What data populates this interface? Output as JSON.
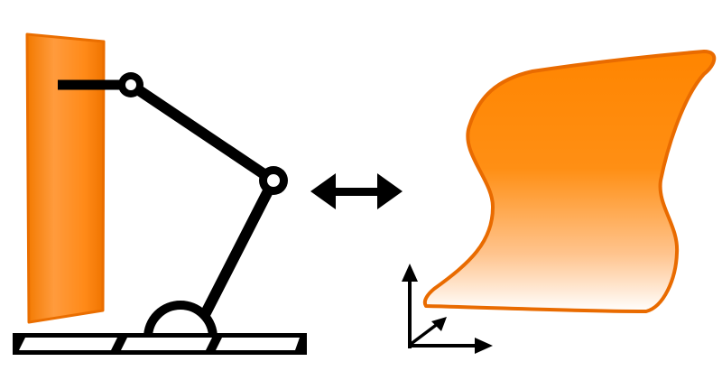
{
  "diagram": {
    "elements": [
      "panel-left",
      "robot-arm",
      "base-rail",
      "double-arrow",
      "curved-surface",
      "coordinate-frame"
    ]
  },
  "colors": {
    "orange": "#ff8000",
    "orange_dark": "#e96b00",
    "orange_light": "#ffe6cc",
    "black": "#000000",
    "white": "#ffffff"
  },
  "icons": {
    "double_arrow": "double-arrow-icon",
    "axes": "axes-icon"
  }
}
